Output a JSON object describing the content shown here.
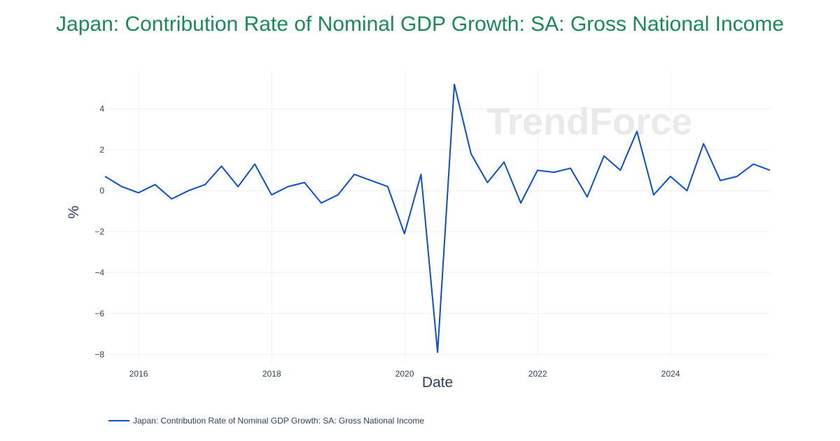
{
  "title": "Japan: Contribution Rate of Nominal GDP Growth: SA: Gross National Income",
  "watermark": "TrendForce",
  "legend": {
    "label": "Japan: Contribution Rate of Nominal GDP Growth: SA: Gross National Income",
    "color": "#0b4fcf"
  },
  "colors": {
    "title": "#1a8a54",
    "line": "#0b4fcf",
    "grid": "#eef0f4",
    "text": "#2a3f5f"
  },
  "chart_data": {
    "type": "line",
    "title": "Japan: Contribution Rate of Nominal GDP Growth: SA: Gross National Income",
    "xlabel": "Date",
    "ylabel": "%",
    "xlim": [
      "2015-06-30",
      "2025-06-30"
    ],
    "ylim": [
      -8.4,
      5.9
    ],
    "x_ticks": [
      "2016",
      "2018",
      "2020",
      "2022",
      "2024"
    ],
    "y_ticks": [
      4,
      2,
      0,
      -2,
      -4,
      -6,
      -8
    ],
    "y_tick_labels": [
      "4",
      "2",
      "0",
      "−2",
      "−4",
      "−6",
      "−8"
    ],
    "grid": true,
    "legend_position": "bottom-left",
    "series": [
      {
        "name": "Japan: Contribution Rate of Nominal GDP Growth: SA: Gross National Income",
        "x": [
          "2015-06-30",
          "2015-09-30",
          "2015-12-31",
          "2016-03-31",
          "2016-06-30",
          "2016-09-30",
          "2016-12-31",
          "2017-03-31",
          "2017-06-30",
          "2017-09-30",
          "2017-12-31",
          "2018-03-31",
          "2018-06-30",
          "2018-09-30",
          "2018-12-31",
          "2019-03-31",
          "2019-06-30",
          "2019-09-30",
          "2019-12-31",
          "2020-03-31",
          "2020-06-30",
          "2020-09-30",
          "2020-12-31",
          "2021-03-31",
          "2021-06-30",
          "2021-09-30",
          "2021-12-31",
          "2022-03-31",
          "2022-06-30",
          "2022-09-30",
          "2022-12-31",
          "2023-03-31",
          "2023-06-30",
          "2023-09-30",
          "2023-12-31",
          "2024-03-31",
          "2024-06-30",
          "2024-09-30",
          "2024-12-31",
          "2025-03-31",
          "2025-06-30"
        ],
        "values": [
          0.7,
          0.2,
          -0.1,
          0.3,
          -0.4,
          0.0,
          0.3,
          1.2,
          0.2,
          1.3,
          -0.2,
          0.2,
          0.4,
          -0.6,
          -0.2,
          0.8,
          0.5,
          0.2,
          -2.1,
          0.8,
          -7.9,
          5.2,
          1.8,
          0.4,
          1.4,
          -0.6,
          1.0,
          0.9,
          1.1,
          -0.3,
          1.7,
          1.0,
          2.9,
          -0.2,
          0.7,
          0.0,
          2.3,
          0.5,
          0.7,
          1.3,
          1.0
        ]
      }
    ]
  }
}
